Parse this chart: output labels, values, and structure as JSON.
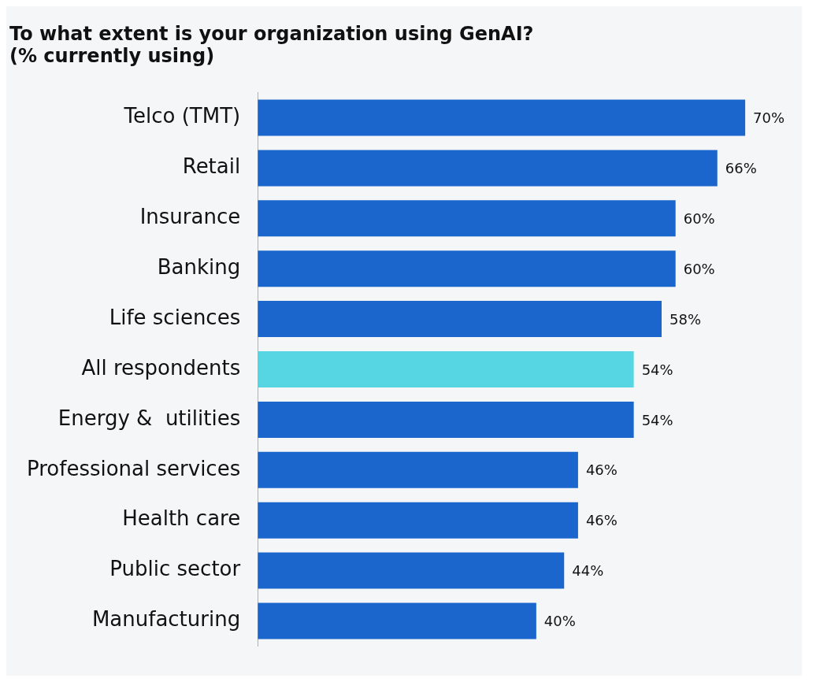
{
  "chart_data": {
    "type": "bar",
    "orientation": "horizontal",
    "title": "To what extent is your organization using GenAI?\n(% currently using)",
    "categories": [
      "Telco (TMT)",
      "Retail",
      "Insurance",
      "Banking",
      "Life sciences",
      "All respondents",
      "Energy &  utilities",
      "Professional services",
      "Health care",
      "Public sector",
      "Manufacturing"
    ],
    "values": [
      70,
      66,
      60,
      60,
      58,
      54,
      54,
      46,
      46,
      44,
      40
    ],
    "colors": [
      "#1a66cc",
      "#1a66cc",
      "#1a66cc",
      "#1a66cc",
      "#1a66cc",
      "#55d6e2",
      "#1a66cc",
      "#1a66cc",
      "#1a66cc",
      "#1a66cc",
      "#1a66cc"
    ],
    "value_labels": [
      "70%",
      "66%",
      "60%",
      "60%",
      "58%",
      "54%",
      "54%",
      "46%",
      "46%",
      "44%",
      "40%"
    ],
    "legend": false
  }
}
